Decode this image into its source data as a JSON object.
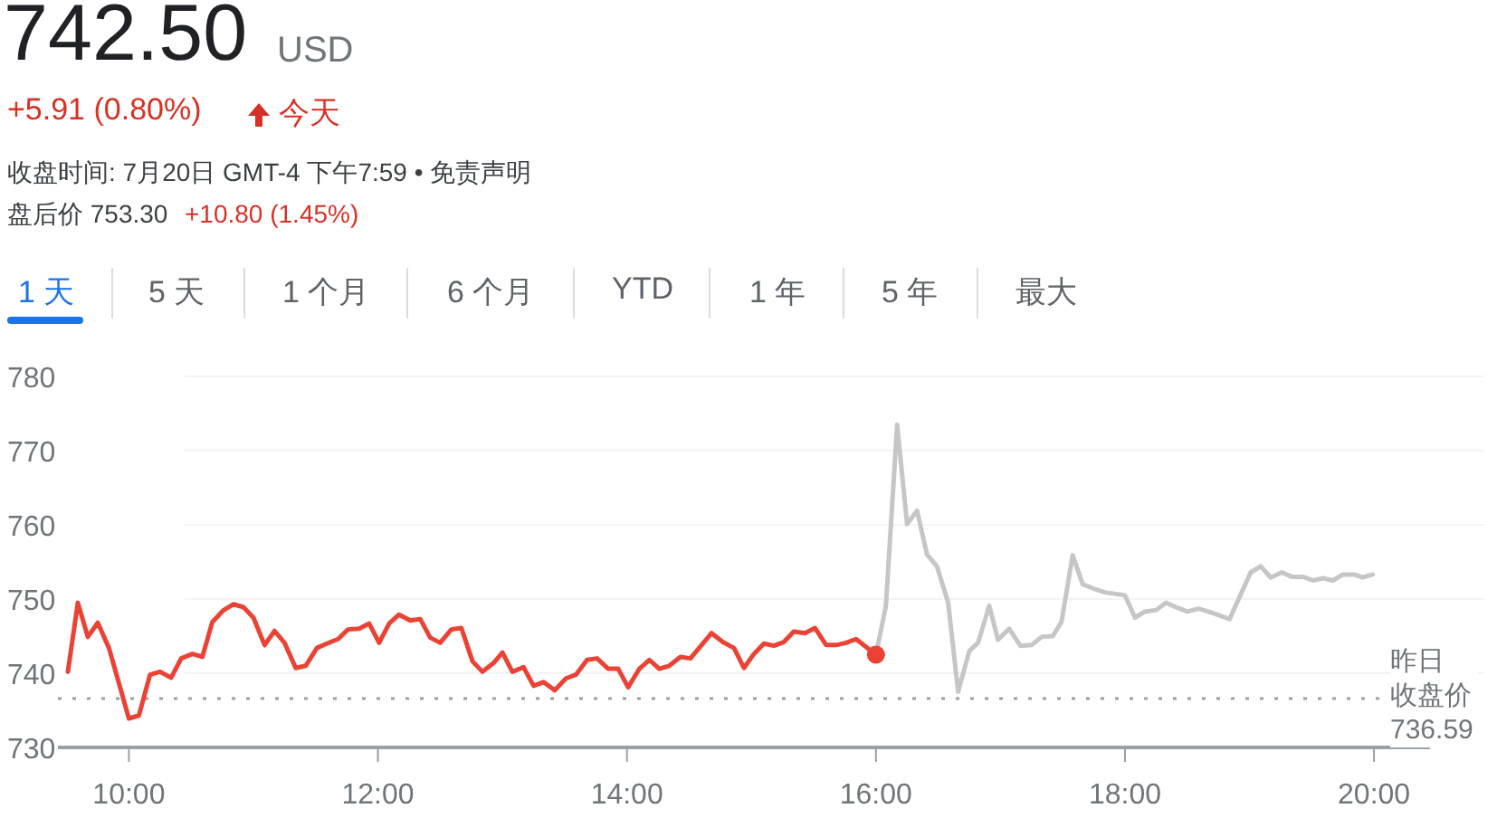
{
  "chart_data": {
    "type": "line",
    "title": "742.50",
    "annotations": [
      "USD",
      "+5.91 (0.80%)",
      "今天",
      "收盘时间: 7月20日 GMT-4 下午7:59 • 免责声明",
      "盘后价 753.30",
      "+10.80 (1.45%)",
      "1 天",
      "5 天",
      "1 个月",
      "6 个月",
      "YTD",
      "1 年",
      "5 年",
      "最大"
    ],
    "xlim": [
      9.43,
      20.45
    ],
    "ylim": [
      730,
      780
    ],
    "xticks": [
      {
        "value": 10,
        "label": "10:00"
      },
      {
        "value": 12,
        "label": "12:00"
      },
      {
        "value": 14,
        "label": "14:00"
      },
      {
        "value": 16,
        "label": "16:00"
      },
      {
        "value": 18,
        "label": "18:00"
      },
      {
        "value": 20,
        "label": "20:00"
      }
    ],
    "yticks": [
      730,
      740,
      750,
      760,
      770,
      780
    ],
    "grid": "y",
    "ref_lines": [
      {
        "axis": "y",
        "value": 736.59,
        "label": "昨日收盘价 736.59",
        "color": "#9aa0a6",
        "line_style": "dotted"
      }
    ],
    "series": [
      {
        "color": "#ea4335",
        "x": [
          9.51,
          9.59,
          9.67,
          9.75,
          9.84,
          10.0,
          10.08,
          10.17,
          10.25,
          10.34,
          10.42,
          10.51,
          10.59,
          10.67,
          10.76,
          10.84,
          10.92,
          11.0,
          11.09,
          11.17,
          11.25,
          11.34,
          11.42,
          11.51,
          11.59,
          11.68,
          11.76,
          11.85,
          11.93,
          12.01,
          12.09,
          12.17,
          12.26,
          12.34,
          12.42,
          12.5,
          12.59,
          12.67,
          12.76,
          12.84,
          12.93,
          13.0,
          13.08,
          13.17,
          13.25,
          13.33,
          13.42,
          13.51,
          13.59,
          13.68,
          13.76,
          13.85,
          13.93,
          14.01,
          14.1,
          14.18,
          14.26,
          14.34,
          14.43,
          14.51,
          14.68,
          14.77,
          14.86,
          14.94,
          15.02,
          15.1,
          15.18,
          15.26,
          15.34,
          15.43,
          15.51,
          15.6,
          15.68,
          15.76,
          15.84,
          16.0
        ],
        "values": [
          740.2,
          749.5,
          744.9,
          746.8,
          743.4,
          733.9,
          734.3,
          739.8,
          740.2,
          739.4,
          742.0,
          742.6,
          742.2,
          746.9,
          748.5,
          749.3,
          748.9,
          747.5,
          743.8,
          745.7,
          744.1,
          740.7,
          741.0,
          743.4,
          744.0,
          744.6,
          745.9,
          746.0,
          746.7,
          744.1,
          746.7,
          747.9,
          747.1,
          747.3,
          744.8,
          744.1,
          745.9,
          746.1,
          741.6,
          740.2,
          741.4,
          742.8,
          740.2,
          740.8,
          738.3,
          738.8,
          737.7,
          739.3,
          739.8,
          741.8,
          742.0,
          740.6,
          740.6,
          738.1,
          740.6,
          741.8,
          740.6,
          741.0,
          742.2,
          742.0,
          745.4,
          744.2,
          743.4,
          740.7,
          742.6,
          744.0,
          743.7,
          744.2,
          745.6,
          745.4,
          746.1,
          743.8,
          743.8,
          744.1,
          744.6,
          742.5
        ]
      },
      {
        "color": "#c6c6c6",
        "x": [
          16.0,
          16.08,
          16.17,
          16.25,
          16.33,
          16.41,
          16.49,
          16.58,
          16.66,
          16.75,
          16.82,
          16.91,
          16.98,
          17.07,
          17.16,
          17.25,
          17.33,
          17.42,
          17.49,
          17.58,
          17.66,
          17.75,
          17.84,
          18.0,
          18.08,
          18.16,
          18.25,
          18.33,
          18.41,
          18.5,
          18.59,
          18.67,
          18.84,
          19.01,
          19.09,
          19.17,
          19.26,
          19.34,
          19.43,
          19.51,
          19.59,
          19.67,
          19.75,
          19.84,
          19.91,
          19.99
        ],
        "values": [
          742.5,
          749.1,
          773.5,
          760.1,
          761.9,
          756.0,
          754.4,
          749.5,
          737.5,
          743.0,
          744.1,
          749.1,
          744.5,
          746.0,
          743.7,
          743.8,
          744.9,
          745.0,
          746.9,
          755.9,
          752.0,
          751.4,
          750.9,
          750.5,
          747.5,
          748.3,
          748.5,
          749.5,
          748.9,
          748.3,
          748.7,
          748.3,
          747.3,
          753.6,
          754.4,
          752.9,
          753.6,
          753.0,
          753.0,
          752.5,
          752.8,
          752.5,
          753.3,
          753.3,
          752.9,
          753.3
        ]
      },
      {
        "type": "scatter",
        "color": "#ea4335",
        "x": [
          16.0
        ],
        "values": [
          742.5
        ]
      }
    ]
  }
}
